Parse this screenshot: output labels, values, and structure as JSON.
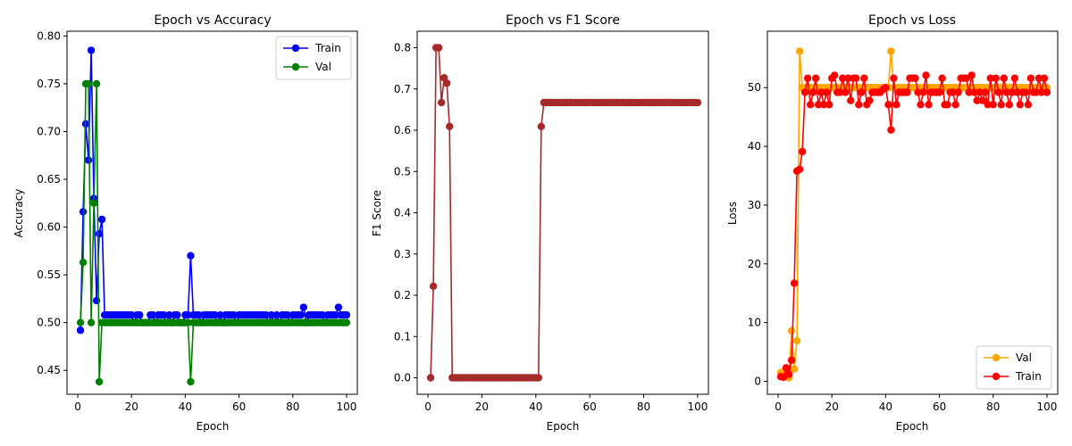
{
  "chart_data": [
    {
      "type": "line",
      "title": "Epoch vs Accuracy",
      "xlabel": "Epoch",
      "ylabel": "Accuracy",
      "xlim": [
        -4,
        104
      ],
      "ylim": [
        0.425,
        0.805
      ],
      "xticks": [
        0,
        20,
        40,
        60,
        80,
        100
      ],
      "yticks": [
        0.45,
        0.5,
        0.55,
        0.6,
        0.65,
        0.7,
        0.75,
        0.8
      ],
      "ytick_labels": [
        "0.45",
        "0.50",
        "0.55",
        "0.60",
        "0.65",
        "0.70",
        "0.75",
        "0.80"
      ],
      "grid": false,
      "legend": "upper-right",
      "series": [
        {
          "name": "Train",
          "color": "#0000ff",
          "x": [
            1,
            2,
            3,
            4,
            5,
            6,
            7,
            8,
            9,
            10,
            11,
            12,
            13,
            14,
            15,
            16,
            17,
            18,
            19,
            20,
            21,
            22,
            23,
            24,
            25,
            26,
            27,
            28,
            29,
            30,
            31,
            32,
            33,
            34,
            35,
            36,
            37,
            38,
            39,
            40,
            41,
            42,
            43,
            44,
            45,
            46,
            47,
            48,
            49,
            50,
            51,
            52,
            53,
            54,
            55,
            56,
            57,
            58,
            59,
            60,
            61,
            62,
            63,
            64,
            65,
            66,
            67,
            68,
            69,
            70,
            71,
            72,
            73,
            74,
            75,
            76,
            77,
            78,
            79,
            80,
            81,
            82,
            83,
            84,
            85,
            86,
            87,
            88,
            89,
            90,
            91,
            92,
            93,
            94,
            95,
            96,
            97,
            98,
            99,
            100
          ],
          "y": [
            0.492,
            0.616,
            0.708,
            0.67,
            0.785,
            0.63,
            0.523,
            0.593,
            0.608,
            0.508,
            0.508,
            0.508,
            0.508,
            0.508,
            0.508,
            0.508,
            0.508,
            0.508,
            0.508,
            0.508,
            0.5,
            0.508,
            0.508,
            0.5,
            0.5,
            0.5,
            0.508,
            0.508,
            0.5,
            0.508,
            0.508,
            0.508,
            0.5,
            0.508,
            0.5,
            0.508,
            0.508,
            0.5,
            0.5,
            0.508,
            0.508,
            0.57,
            0.508,
            0.508,
            0.508,
            0.5,
            0.508,
            0.508,
            0.508,
            0.508,
            0.508,
            0.5,
            0.508,
            0.5,
            0.508,
            0.508,
            0.508,
            0.508,
            0.5,
            0.508,
            0.508,
            0.508,
            0.508,
            0.508,
            0.508,
            0.508,
            0.508,
            0.508,
            0.508,
            0.508,
            0.5,
            0.508,
            0.5,
            0.508,
            0.5,
            0.508,
            0.508,
            0.508,
            0.5,
            0.508,
            0.508,
            0.508,
            0.508,
            0.516,
            0.5,
            0.508,
            0.508,
            0.508,
            0.508,
            0.508,
            0.508,
            0.5,
            0.508,
            0.508,
            0.508,
            0.508,
            0.516,
            0.508,
            0.508,
            0.508
          ]
        },
        {
          "name": "Val",
          "color": "#008000",
          "x": [
            1,
            2,
            3,
            4,
            5,
            6,
            7,
            8,
            9,
            10,
            11,
            12,
            13,
            14,
            15,
            16,
            17,
            18,
            19,
            20,
            21,
            22,
            23,
            24,
            25,
            26,
            27,
            28,
            29,
            30,
            31,
            32,
            33,
            34,
            35,
            36,
            37,
            38,
            39,
            40,
            41,
            42,
            43,
            44,
            45,
            46,
            47,
            48,
            49,
            50,
            51,
            52,
            53,
            54,
            55,
            56,
            57,
            58,
            59,
            60,
            61,
            62,
            63,
            64,
            65,
            66,
            67,
            68,
            69,
            70,
            71,
            72,
            73,
            74,
            75,
            76,
            77,
            78,
            79,
            80,
            81,
            82,
            83,
            84,
            85,
            86,
            87,
            88,
            89,
            90,
            91,
            92,
            93,
            94,
            95,
            96,
            97,
            98,
            99,
            100
          ],
          "y": [
            0.5,
            0.563,
            0.75,
            0.75,
            0.5,
            0.625,
            0.75,
            0.438,
            0.5,
            0.5,
            0.5,
            0.5,
            0.5,
            0.5,
            0.5,
            0.5,
            0.5,
            0.5,
            0.5,
            0.5,
            0.5,
            0.5,
            0.5,
            0.5,
            0.5,
            0.5,
            0.5,
            0.5,
            0.5,
            0.5,
            0.5,
            0.5,
            0.5,
            0.5,
            0.5,
            0.5,
            0.5,
            0.5,
            0.5,
            0.5,
            0.5,
            0.438,
            0.5,
            0.5,
            0.5,
            0.5,
            0.5,
            0.5,
            0.5,
            0.5,
            0.5,
            0.5,
            0.5,
            0.5,
            0.5,
            0.5,
            0.5,
            0.5,
            0.5,
            0.5,
            0.5,
            0.5,
            0.5,
            0.5,
            0.5,
            0.5,
            0.5,
            0.5,
            0.5,
            0.5,
            0.5,
            0.5,
            0.5,
            0.5,
            0.5,
            0.5,
            0.5,
            0.5,
            0.5,
            0.5,
            0.5,
            0.5,
            0.5,
            0.5,
            0.5,
            0.5,
            0.5,
            0.5,
            0.5,
            0.5,
            0.5,
            0.5,
            0.5,
            0.5,
            0.5,
            0.5,
            0.5,
            0.5,
            0.5,
            0.5
          ]
        }
      ]
    },
    {
      "type": "line",
      "title": "Epoch vs F1 Score",
      "xlabel": "Epoch",
      "ylabel": "F1 Score",
      "xlim": [
        -4,
        104
      ],
      "ylim": [
        -0.04,
        0.84
      ],
      "xticks": [
        0,
        20,
        40,
        60,
        80,
        100
      ],
      "yticks": [
        0.0,
        0.1,
        0.2,
        0.3,
        0.4,
        0.5,
        0.6,
        0.7,
        0.8
      ],
      "ytick_labels": [
        "0.0",
        "0.1",
        "0.2",
        "0.3",
        "0.4",
        "0.5",
        "0.6",
        "0.7",
        "0.8"
      ],
      "grid": false,
      "series": [
        {
          "color": "#a52a2a",
          "x": [
            1,
            2,
            3,
            4,
            5,
            6,
            7,
            8,
            9,
            10,
            11,
            12,
            13,
            14,
            15,
            16,
            17,
            18,
            19,
            20,
            21,
            22,
            23,
            24,
            25,
            26,
            27,
            28,
            29,
            30,
            31,
            32,
            33,
            34,
            35,
            36,
            37,
            38,
            39,
            40,
            41,
            42,
            43,
            44,
            45,
            46,
            47,
            48,
            49,
            50,
            51,
            52,
            53,
            54,
            55,
            56,
            57,
            58,
            59,
            60,
            61,
            62,
            63,
            64,
            65,
            66,
            67,
            68,
            69,
            70,
            71,
            72,
            73,
            74,
            75,
            76,
            77,
            78,
            79,
            80,
            81,
            82,
            83,
            84,
            85,
            86,
            87,
            88,
            89,
            90,
            91,
            92,
            93,
            94,
            95,
            96,
            97,
            98,
            99,
            100
          ],
          "y": [
            0.0,
            0.222,
            0.8,
            0.8,
            0.667,
            0.727,
            0.714,
            0.609,
            0.0,
            0.0,
            0.0,
            0.0,
            0.0,
            0.0,
            0.0,
            0.0,
            0.0,
            0.0,
            0.0,
            0.0,
            0.0,
            0.0,
            0.0,
            0.0,
            0.0,
            0.0,
            0.0,
            0.0,
            0.0,
            0.0,
            0.0,
            0.0,
            0.0,
            0.0,
            0.0,
            0.0,
            0.0,
            0.0,
            0.0,
            0.0,
            0.0,
            0.609,
            0.667,
            0.667,
            0.667,
            0.667,
            0.667,
            0.667,
            0.667,
            0.667,
            0.667,
            0.667,
            0.667,
            0.667,
            0.667,
            0.667,
            0.667,
            0.667,
            0.667,
            0.667,
            0.667,
            0.667,
            0.667,
            0.667,
            0.667,
            0.667,
            0.667,
            0.667,
            0.667,
            0.667,
            0.667,
            0.667,
            0.667,
            0.667,
            0.667,
            0.667,
            0.667,
            0.667,
            0.667,
            0.667,
            0.667,
            0.667,
            0.667,
            0.667,
            0.667,
            0.667,
            0.667,
            0.667,
            0.667,
            0.667,
            0.667,
            0.667,
            0.667,
            0.667,
            0.667,
            0.667,
            0.667,
            0.667,
            0.667,
            0.667
          ]
        }
      ]
    },
    {
      "type": "line",
      "title": "Epoch vs Loss",
      "xlabel": "Epoch",
      "ylabel": "Loss",
      "xlim": [
        -4,
        104
      ],
      "ylim": [
        -2.2,
        59.6
      ],
      "xticks": [
        0,
        20,
        40,
        60,
        80,
        100
      ],
      "yticks": [
        0,
        10,
        20,
        30,
        40,
        50
      ],
      "ytick_labels": [
        "0",
        "10",
        "20",
        "30",
        "40",
        "50"
      ],
      "grid": false,
      "legend": "lower-right",
      "series": [
        {
          "name": "Val",
          "color": "#ffa500",
          "x": [
            1,
            2,
            3,
            4,
            5,
            6,
            7,
            8,
            9,
            10,
            11,
            12,
            13,
            14,
            15,
            16,
            17,
            18,
            19,
            20,
            21,
            22,
            23,
            24,
            25,
            26,
            27,
            28,
            29,
            30,
            31,
            32,
            33,
            34,
            35,
            36,
            37,
            38,
            39,
            40,
            41,
            42,
            43,
            44,
            45,
            46,
            47,
            48,
            49,
            50,
            51,
            52,
            53,
            54,
            55,
            56,
            57,
            58,
            59,
            60,
            61,
            62,
            63,
            64,
            65,
            66,
            67,
            68,
            69,
            70,
            71,
            72,
            73,
            74,
            75,
            76,
            77,
            78,
            79,
            80,
            81,
            82,
            83,
            84,
            85,
            86,
            87,
            88,
            89,
            90,
            91,
            92,
            93,
            94,
            95,
            96,
            97,
            98,
            99,
            100
          ],
          "y": [
            1.5,
            1.2,
            2.0,
            0.6,
            8.6,
            2.1,
            6.9,
            56.2,
            50.0,
            50.0,
            50.0,
            50.0,
            50.0,
            50.0,
            50.0,
            50.0,
            50.0,
            50.0,
            50.0,
            50.0,
            50.0,
            50.0,
            50.0,
            50.0,
            50.0,
            50.0,
            50.0,
            50.0,
            50.0,
            50.0,
            50.0,
            50.0,
            50.0,
            50.0,
            50.0,
            50.0,
            50.0,
            50.0,
            50.0,
            50.0,
            50.0,
            56.2,
            50.0,
            50.0,
            50.0,
            50.0,
            50.0,
            50.0,
            50.0,
            50.0,
            50.0,
            50.0,
            50.0,
            50.0,
            50.0,
            50.0,
            50.0,
            50.0,
            50.0,
            50.0,
            50.0,
            50.0,
            50.0,
            50.0,
            50.0,
            50.0,
            50.0,
            50.0,
            50.0,
            50.0,
            50.0,
            50.0,
            50.0,
            50.0,
            50.0,
            50.0,
            50.0,
            50.0,
            50.0,
            50.0,
            50.0,
            50.0,
            50.0,
            50.0,
            50.0,
            50.0,
            50.0,
            50.0,
            50.0,
            50.0,
            50.0,
            50.0,
            50.0,
            50.0,
            50.0,
            50.0,
            50.0,
            50.0,
            50.0,
            50.0
          ]
        },
        {
          "name": "Train",
          "color": "#ff0000",
          "x": [
            1,
            2,
            3,
            4,
            5,
            6,
            7,
            8,
            9,
            10,
            11,
            12,
            13,
            14,
            15,
            16,
            17,
            18,
            19,
            20,
            21,
            22,
            23,
            24,
            25,
            26,
            27,
            28,
            29,
            30,
            31,
            32,
            33,
            34,
            35,
            36,
            37,
            38,
            39,
            40,
            41,
            42,
            43,
            44,
            45,
            46,
            47,
            48,
            49,
            50,
            51,
            52,
            53,
            54,
            55,
            56,
            57,
            58,
            59,
            60,
            61,
            62,
            63,
            64,
            65,
            66,
            67,
            68,
            69,
            70,
            71,
            72,
            73,
            74,
            75,
            76,
            77,
            78,
            79,
            80,
            81,
            82,
            83,
            84,
            85,
            86,
            87,
            88,
            89,
            90,
            91,
            92,
            93,
            94,
            95,
            96,
            97,
            98,
            99,
            100
          ],
          "y": [
            0.8,
            0.7,
            2.3,
            1.2,
            3.6,
            16.7,
            35.8,
            36.1,
            39.1,
            49.2,
            51.6,
            47.1,
            49.2,
            51.6,
            47.1,
            49.2,
            47.1,
            49.2,
            47.1,
            51.6,
            52.1,
            49.2,
            49.2,
            51.6,
            49.2,
            51.6,
            47.8,
            51.6,
            51.6,
            47.1,
            49.2,
            51.6,
            47.1,
            47.8,
            49.2,
            49.2,
            49.2,
            49.2,
            49.7,
            50.0,
            47.1,
            42.8,
            51.6,
            47.1,
            49.2,
            49.2,
            49.2,
            49.2,
            51.6,
            51.6,
            51.6,
            49.2,
            47.1,
            49.2,
            52.1,
            47.1,
            49.2,
            49.2,
            49.2,
            49.2,
            51.6,
            47.1,
            47.1,
            49.2,
            49.2,
            47.1,
            49.2,
            51.6,
            51.6,
            51.6,
            49.2,
            52.1,
            49.2,
            47.8,
            49.2,
            47.8,
            49.2,
            47.1,
            51.6,
            47.1,
            51.6,
            49.2,
            47.1,
            51.6,
            49.2,
            47.1,
            49.2,
            51.6,
            49.2,
            47.1,
            49.2,
            49.2,
            47.1,
            51.6,
            49.2,
            49.2,
            51.6,
            49.2,
            51.6,
            49.2
          ]
        }
      ]
    }
  ]
}
